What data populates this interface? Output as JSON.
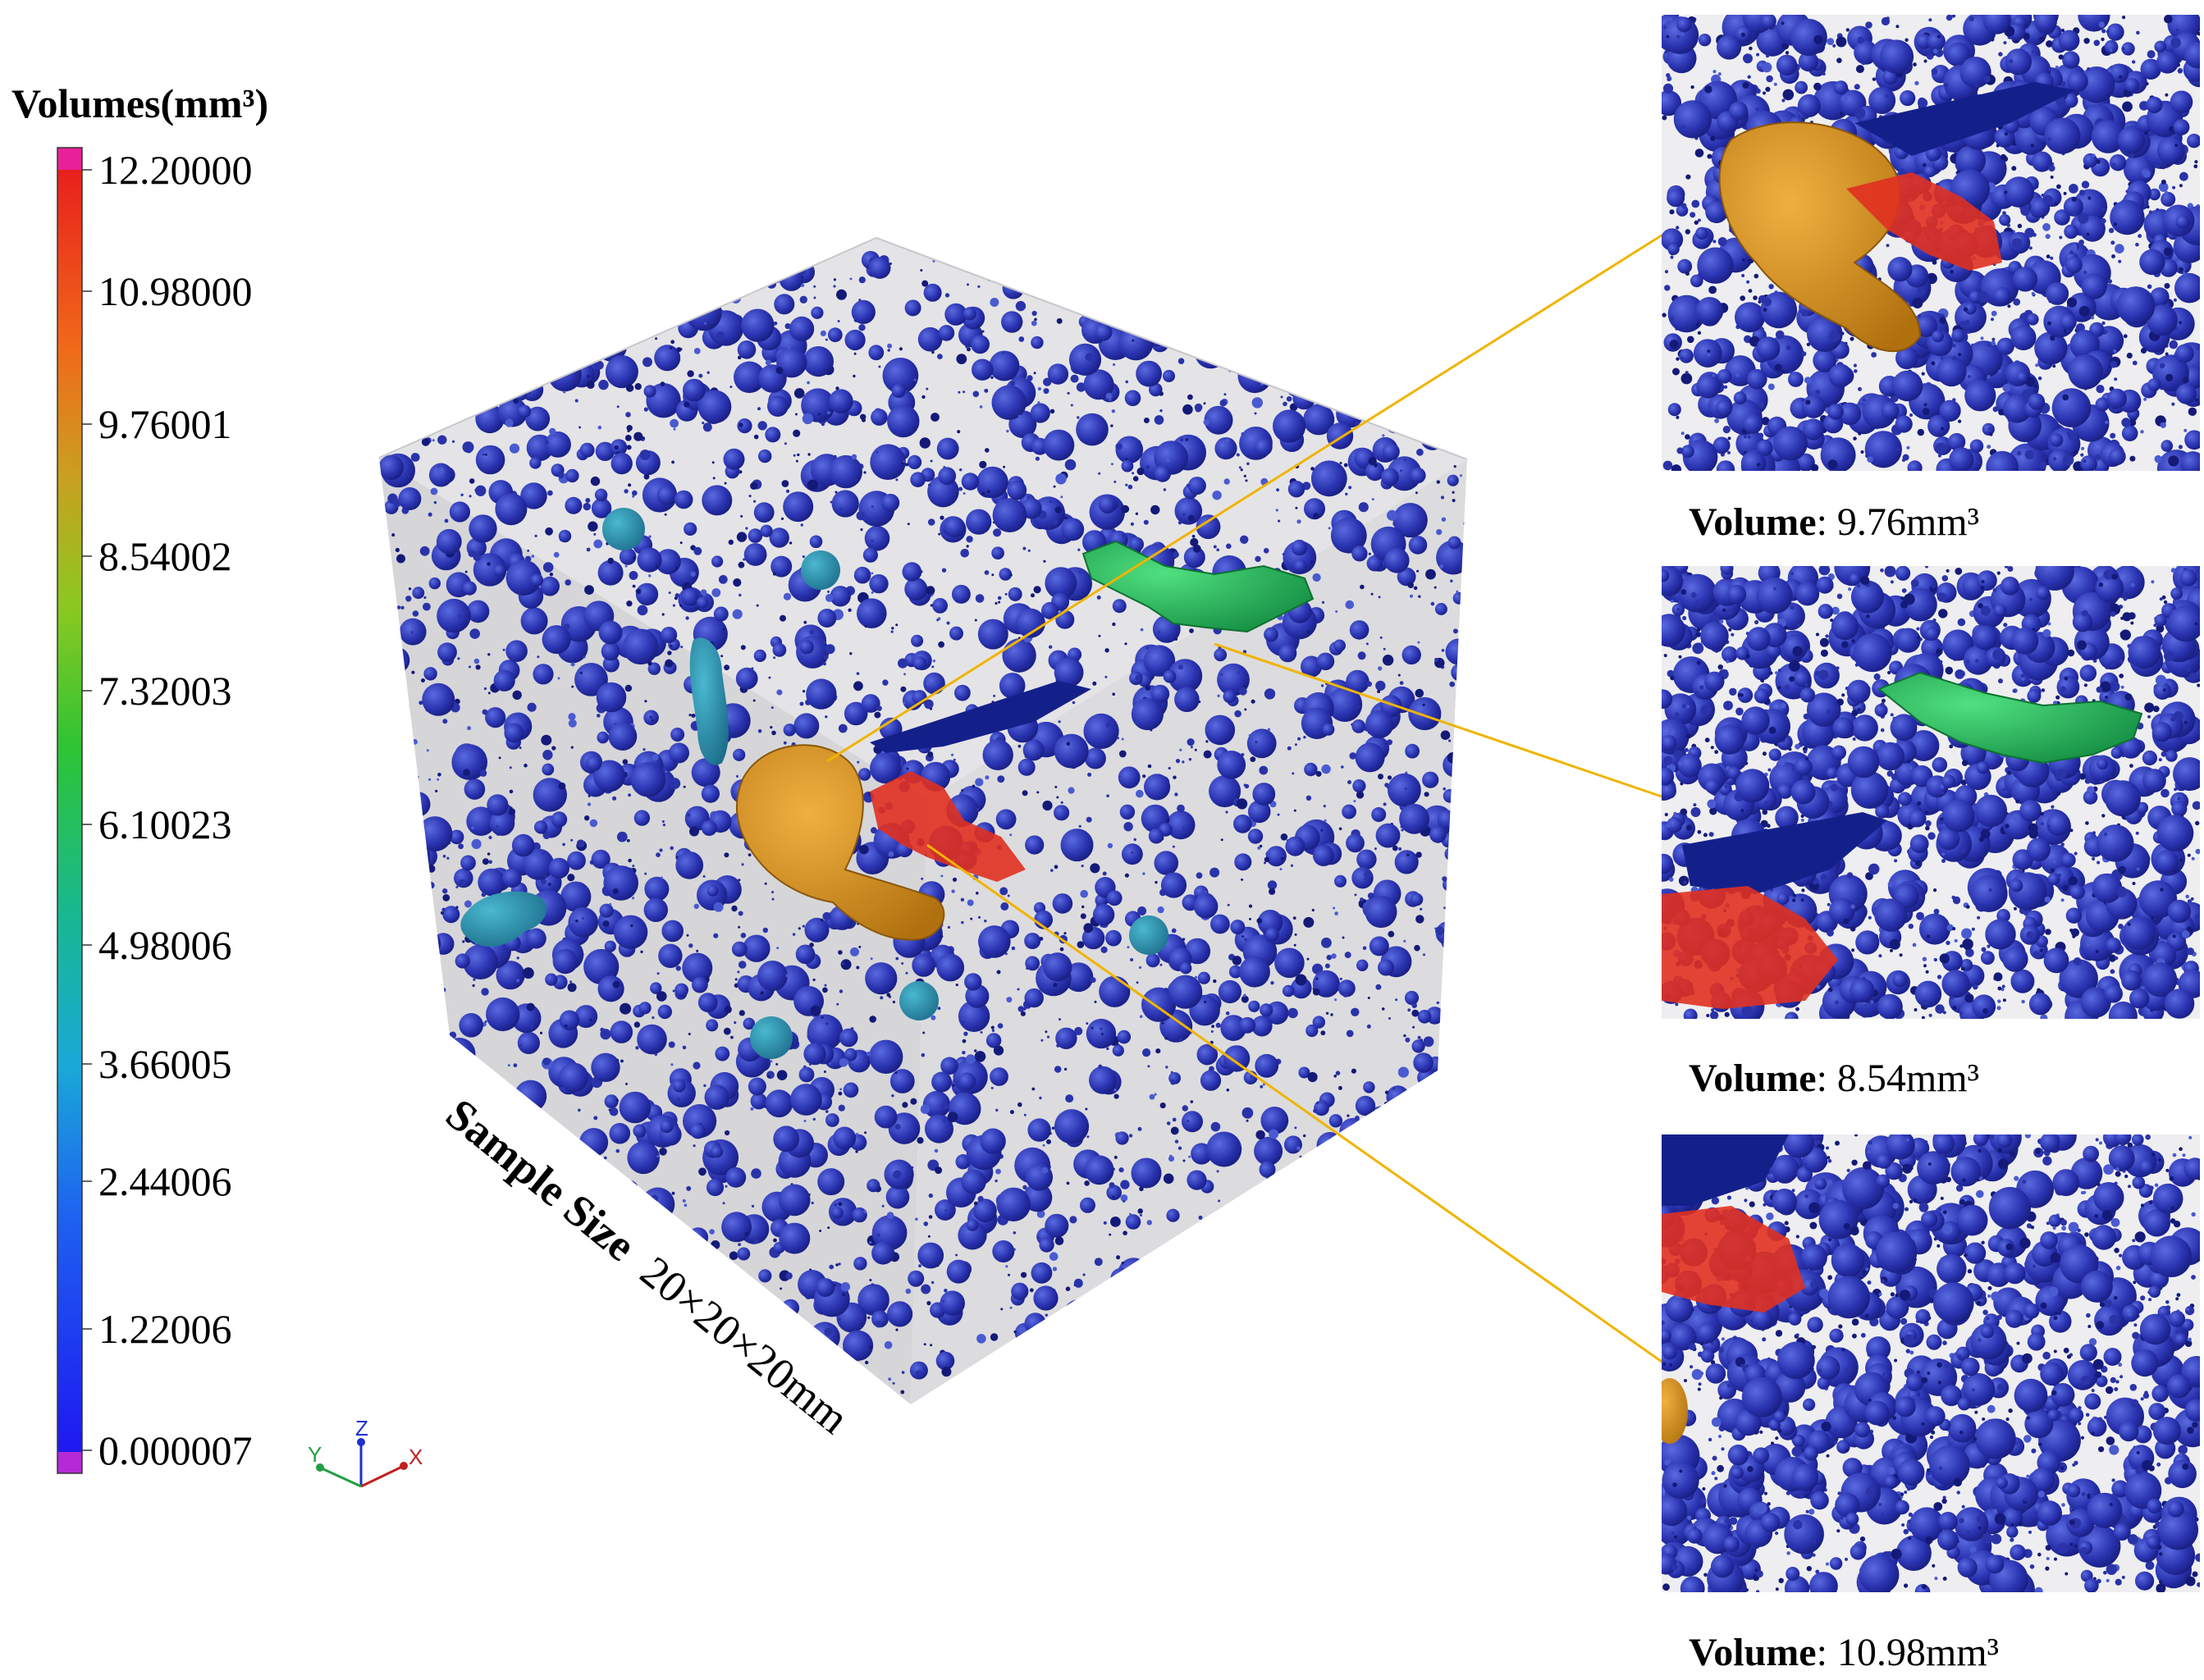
{
  "legend": {
    "title": "Volumes(mm³)",
    "ticks": [
      "12.20000",
      "10.98000",
      "9.76001",
      "8.54002",
      "7.32003",
      "6.10023",
      "4.98006",
      "3.66005",
      "2.44006",
      "1.22006",
      "0.000007"
    ],
    "colors": {
      "above": "#e8209a",
      "red": "#e8201c",
      "orange": "#f06a1a",
      "amber": "#c9a020",
      "green": "#2ec434",
      "teal": "#18a89a",
      "cyan": "#1ab0d8",
      "blue": "#1e3cf0",
      "below": "#b32ad6"
    }
  },
  "axes": {
    "x": "X",
    "y": "Y",
    "z": "Z"
  },
  "sample": {
    "prefix": "Sample Size",
    "value": "20×20×20mm"
  },
  "zooms": [
    {
      "label": "Volume",
      "value": ": 9.76mm³"
    },
    {
      "label": "Volume",
      "value": ": 8.54mm³"
    },
    {
      "label": "Volume",
      "value": ": 10.98mm³"
    }
  ],
  "palette": {
    "pore_blue": "#2a33a8",
    "pore_dark": "#141a78",
    "pore_light": "#4a5ad0",
    "orange_pore": "#d9901e",
    "red_pore": "#e03020",
    "green_pore": "#1fbf5a",
    "teal_pore": "#2a8fae",
    "leader": "#f0b400",
    "cube_face": "#d9d9dc"
  }
}
